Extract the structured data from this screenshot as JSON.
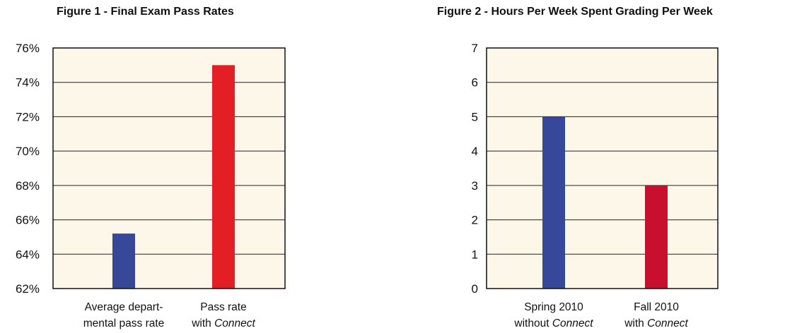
{
  "charts": [
    {
      "title": "Figure 1 - Final Exam Pass Rates",
      "chart_data": {
        "type": "bar",
        "categories": [
          {
            "line1": "Average depart-",
            "line2": "mental pass rate",
            "line2_italic": ""
          },
          {
            "line1": "Pass rate",
            "line2": "with ",
            "line2_italic": "Connect"
          }
        ],
        "values": [
          65.2,
          75
        ],
        "colors": [
          "#37479a",
          "#e31e24"
        ],
        "ylim": [
          62,
          76
        ],
        "ticks": [
          62,
          64,
          66,
          68,
          70,
          72,
          74,
          76
        ],
        "tick_suffix": "%",
        "grid": true,
        "plot_bg": "#fdf7e9"
      }
    },
    {
      "title": "Figure 2 - Hours Per Week Spent Grading Per Week",
      "chart_data": {
        "type": "bar",
        "categories": [
          {
            "line1": "Spring 2010",
            "line2": "without ",
            "line2_italic": "Connect"
          },
          {
            "line1": "Fall 2010",
            "line2": "with ",
            "line2_italic": "Connect"
          }
        ],
        "values": [
          5,
          3
        ],
        "colors": [
          "#37479a",
          "#c8102e"
        ],
        "ylim": [
          0,
          7
        ],
        "ticks": [
          0,
          1,
          2,
          3,
          4,
          5,
          6,
          7
        ],
        "tick_suffix": "",
        "grid": true,
        "plot_bg": "#fdf7e9"
      }
    }
  ]
}
